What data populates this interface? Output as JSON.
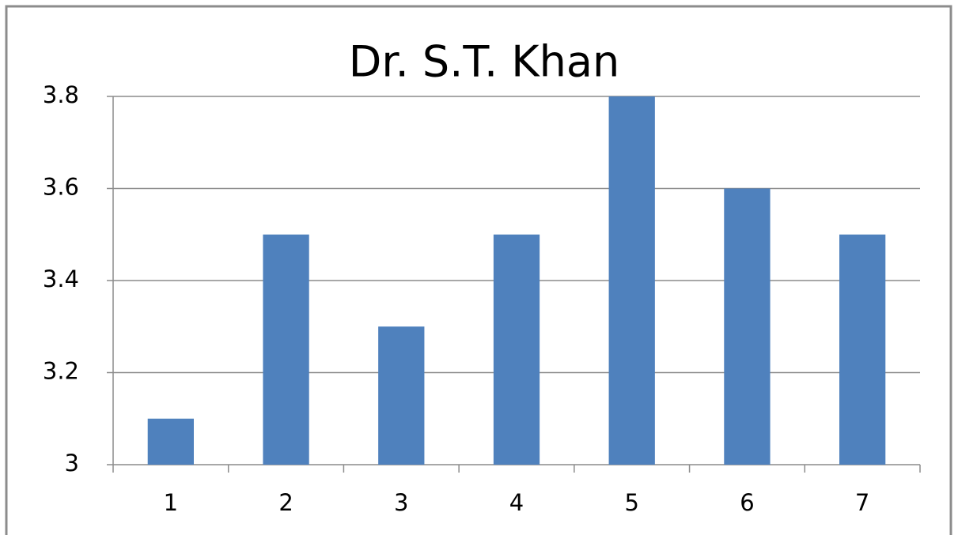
{
  "chart_data": {
    "type": "bar",
    "title": "Dr. S.T. Khan",
    "categories": [
      "1",
      "2",
      "3",
      "4",
      "5",
      "6",
      "7"
    ],
    "values": [
      3.1,
      3.5,
      3.3,
      3.5,
      3.8,
      3.6,
      3.5
    ],
    "color": "#4f81bd",
    "ylim": [
      3,
      3.8
    ],
    "yticks": [
      3,
      3.2,
      3.4,
      3.6,
      3.8
    ],
    "grid": true
  }
}
